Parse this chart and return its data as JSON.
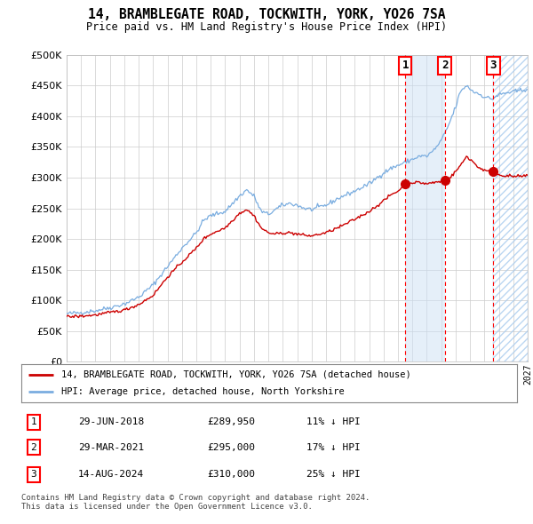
{
  "title": "14, BRAMBLEGATE ROAD, TOCKWITH, YORK, YO26 7SA",
  "subtitle": "Price paid vs. HM Land Registry's House Price Index (HPI)",
  "ylim": [
    0,
    500000
  ],
  "yticks": [
    0,
    50000,
    100000,
    150000,
    200000,
    250000,
    300000,
    350000,
    400000,
    450000,
    500000
  ],
  "xlim_start": 1995.0,
  "xlim_end": 2027.0,
  "sale_color": "#cc0000",
  "hpi_color": "#7aade0",
  "transactions": [
    {
      "date_num": 2018.5,
      "price": 289950,
      "label": "1"
    },
    {
      "date_num": 2021.25,
      "price": 295000,
      "label": "2"
    },
    {
      "date_num": 2024.62,
      "price": 310000,
      "label": "3"
    }
  ],
  "legend_sale": "14, BRAMBLEGATE ROAD, TOCKWITH, YORK, YO26 7SA (detached house)",
  "legend_hpi": "HPI: Average price, detached house, North Yorkshire",
  "table": [
    {
      "num": "1",
      "date": "29-JUN-2018",
      "price": "£289,950",
      "hpi": "11% ↓ HPI"
    },
    {
      "num": "2",
      "date": "29-MAR-2021",
      "price": "£295,000",
      "hpi": "17% ↓ HPI"
    },
    {
      "num": "3",
      "date": "14-AUG-2024",
      "price": "£310,000",
      "hpi": "25% ↓ HPI"
    }
  ],
  "footer": "Contains HM Land Registry data © Crown copyright and database right 2024.\nThis data is licensed under the Open Government Licence v3.0.",
  "hpi_anchors": [
    [
      1995.0,
      78000
    ],
    [
      1996.0,
      80000
    ],
    [
      1997.0,
      83000
    ],
    [
      1998.0,
      88000
    ],
    [
      1999.0,
      94000
    ],
    [
      2000.0,
      105000
    ],
    [
      2001.0,
      125000
    ],
    [
      2002.0,
      155000
    ],
    [
      2003.0,
      185000
    ],
    [
      2004.0,
      210000
    ],
    [
      2004.5,
      230000
    ],
    [
      2005.0,
      238000
    ],
    [
      2006.0,
      245000
    ],
    [
      2007.0,
      270000
    ],
    [
      2007.5,
      280000
    ],
    [
      2008.0,
      270000
    ],
    [
      2008.5,
      245000
    ],
    [
      2009.0,
      240000
    ],
    [
      2009.5,
      248000
    ],
    [
      2010.0,
      255000
    ],
    [
      2010.5,
      258000
    ],
    [
      2011.0,
      255000
    ],
    [
      2011.5,
      250000
    ],
    [
      2012.0,
      248000
    ],
    [
      2013.0,
      255000
    ],
    [
      2014.0,
      268000
    ],
    [
      2015.0,
      278000
    ],
    [
      2016.0,
      290000
    ],
    [
      2017.0,
      308000
    ],
    [
      2017.5,
      315000
    ],
    [
      2018.0,
      320000
    ],
    [
      2018.5,
      325000
    ],
    [
      2019.0,
      330000
    ],
    [
      2019.5,
      335000
    ],
    [
      2020.0,
      335000
    ],
    [
      2020.5,
      345000
    ],
    [
      2021.0,
      360000
    ],
    [
      2021.5,
      385000
    ],
    [
      2022.0,
      415000
    ],
    [
      2022.25,
      435000
    ],
    [
      2022.5,
      445000
    ],
    [
      2022.75,
      450000
    ],
    [
      2023.0,
      445000
    ],
    [
      2023.25,
      440000
    ],
    [
      2023.5,
      438000
    ],
    [
      2023.75,
      435000
    ],
    [
      2024.0,
      432000
    ],
    [
      2024.25,
      430000
    ],
    [
      2024.5,
      428000
    ],
    [
      2024.75,
      432000
    ],
    [
      2025.0,
      435000
    ],
    [
      2025.5,
      438000
    ],
    [
      2026.0,
      440000
    ],
    [
      2026.5,
      442000
    ],
    [
      2027.0,
      445000
    ]
  ],
  "sale_anchors": [
    [
      1995.0,
      73000
    ],
    [
      1996.0,
      74000
    ],
    [
      1997.0,
      76000
    ],
    [
      1998.0,
      80000
    ],
    [
      1999.0,
      84000
    ],
    [
      2000.0,
      93000
    ],
    [
      2001.0,
      108000
    ],
    [
      2002.0,
      138000
    ],
    [
      2003.0,
      162000
    ],
    [
      2004.0,
      185000
    ],
    [
      2004.5,
      200000
    ],
    [
      2005.0,
      208000
    ],
    [
      2006.0,
      218000
    ],
    [
      2007.0,
      242000
    ],
    [
      2007.5,
      248000
    ],
    [
      2008.0,
      238000
    ],
    [
      2008.5,
      218000
    ],
    [
      2009.0,
      210000
    ],
    [
      2009.5,
      208000
    ],
    [
      2010.0,
      210000
    ],
    [
      2010.5,
      210000
    ],
    [
      2011.0,
      208000
    ],
    [
      2011.5,
      206000
    ],
    [
      2012.0,
      205000
    ],
    [
      2013.0,
      210000
    ],
    [
      2014.0,
      220000
    ],
    [
      2015.0,
      232000
    ],
    [
      2016.0,
      245000
    ],
    [
      2017.0,
      262000
    ],
    [
      2017.5,
      272000
    ],
    [
      2018.0,
      278000
    ],
    [
      2018.5,
      289950
    ],
    [
      2019.0,
      292000
    ],
    [
      2019.5,
      292000
    ],
    [
      2020.0,
      290000
    ],
    [
      2020.5,
      292000
    ],
    [
      2021.0,
      294000
    ],
    [
      2021.25,
      295000
    ],
    [
      2021.5,
      297000
    ],
    [
      2022.0,
      310000
    ],
    [
      2022.5,
      325000
    ],
    [
      2022.75,
      335000
    ],
    [
      2023.0,
      330000
    ],
    [
      2023.25,
      325000
    ],
    [
      2023.5,
      318000
    ],
    [
      2023.75,
      315000
    ],
    [
      2024.0,
      312000
    ],
    [
      2024.25,
      310000
    ],
    [
      2024.5,
      309000
    ],
    [
      2024.62,
      310000
    ],
    [
      2024.75,
      308000
    ],
    [
      2025.0,
      305000
    ],
    [
      2025.5,
      303000
    ],
    [
      2026.0,
      302000
    ],
    [
      2026.5,
      302000
    ],
    [
      2027.0,
      303000
    ]
  ]
}
